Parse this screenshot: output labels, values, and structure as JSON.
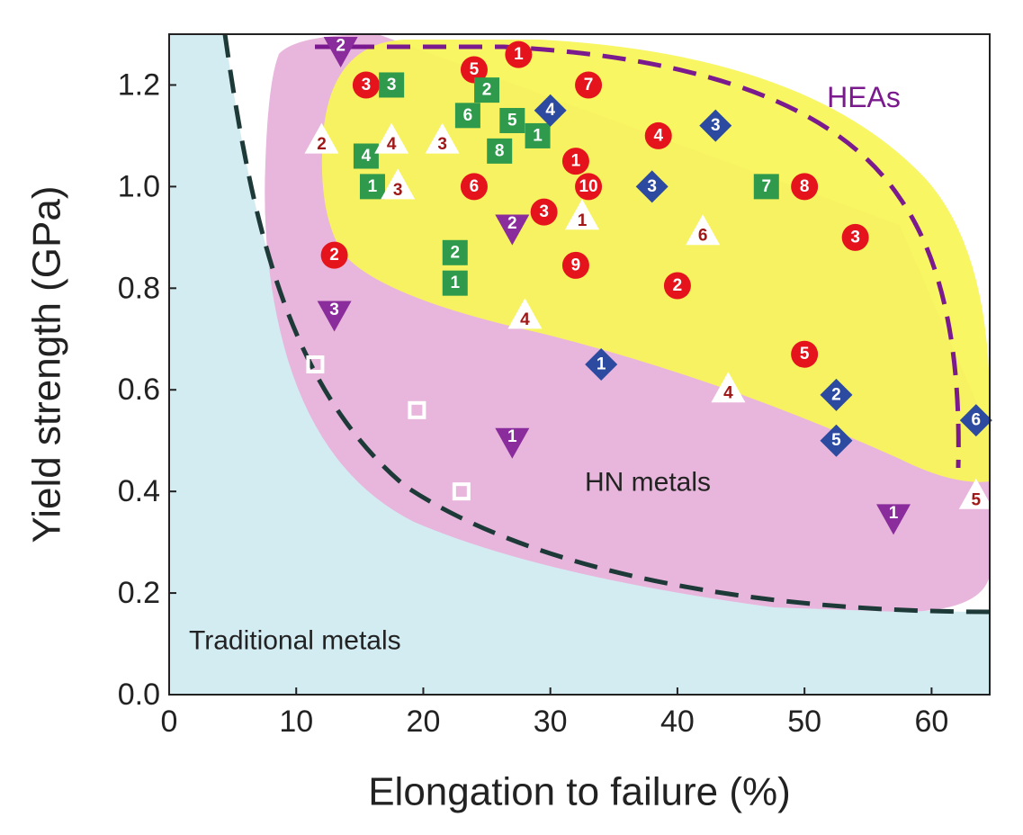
{
  "chart_data": {
    "type": "scatter",
    "x_label": "Elongation to failure (%)",
    "y_label": "Yield strength (GPa)",
    "xlim": [
      0,
      65
    ],
    "ylim": [
      0,
      1.3
    ],
    "xticks": [
      0,
      10,
      20,
      30,
      40,
      50,
      60
    ],
    "yticks": [
      {
        "value": 0,
        "label": "0.0"
      },
      0.2,
      0.4,
      0.6,
      0.8,
      {
        "value": 1,
        "label": "1.0"
      },
      1.2
    ],
    "annotations": [
      "HEAs",
      "HN metals",
      "Traditional metals"
    ],
    "series": [
      {
        "marker": "circle",
        "color": "#e5141c",
        "text_color": "#ffffff",
        "x": [
          27.5,
          24,
          33,
          15.5,
          38.5,
          32,
          33,
          24,
          50,
          29.5,
          54,
          13,
          32,
          40,
          50
        ],
        "values": [
          1.26,
          1.23,
          1.2,
          1.2,
          1.1,
          1.05,
          1.0,
          1.0,
          1.0,
          0.95,
          0.9,
          0.865,
          0.845,
          0.805,
          0.67
        ],
        "labels": [
          "1",
          "5",
          "7",
          "3",
          "4",
          "1",
          "10",
          "6",
          "8",
          "3",
          "3",
          "2",
          "9",
          "2",
          "5"
        ]
      },
      {
        "marker": "square",
        "color": "#2f9a4c",
        "text_color": "#ffffff",
        "x": [
          17.5,
          25,
          23.5,
          27,
          29,
          26,
          15.5,
          16,
          22.5,
          22.5,
          47
        ],
        "values": [
          1.2,
          1.19,
          1.14,
          1.13,
          1.1,
          1.07,
          1.06,
          1.0,
          0.87,
          0.81,
          1.0
        ],
        "labels": [
          "3",
          "2",
          "6",
          "5",
          "1",
          "8",
          "4",
          "1",
          "2",
          "1",
          "7"
        ]
      },
      {
        "marker": "diamond",
        "color": "#2b4aa0",
        "text_color": "#ffffff",
        "x": [
          30,
          43,
          38,
          34,
          52.5,
          52.5,
          63.5
        ],
        "values": [
          1.15,
          1.12,
          1.0,
          0.65,
          0.59,
          0.5,
          0.54
        ],
        "labels": [
          "4",
          "3",
          "3",
          "1",
          "2",
          "5",
          "6"
        ]
      },
      {
        "marker": "triangle-up",
        "color": "#ffffff",
        "text_color": "#a01818",
        "x": [
          12,
          17.5,
          21.5,
          18,
          32.5,
          42,
          28,
          44,
          63.5
        ],
        "values": [
          1.09,
          1.09,
          1.09,
          1.0,
          0.94,
          0.91,
          0.745,
          0.6,
          0.39
        ],
        "labels": [
          "2",
          "4",
          "3",
          "3",
          "1",
          "6",
          "4",
          "4",
          "5"
        ]
      },
      {
        "marker": "triangle-down",
        "color": "#8a2c9c",
        "text_color": "#ffffff",
        "x": [
          13.5,
          27,
          13,
          27,
          57
        ],
        "values": [
          1.27,
          0.92,
          0.75,
          0.5,
          0.35
        ],
        "labels": [
          "2",
          "2",
          "3",
          "1",
          "1"
        ]
      },
      {
        "marker": "open-square",
        "color": "#ffffff",
        "x": [
          11.5,
          19.5,
          23
        ],
        "values": [
          0.65,
          0.56,
          0.4
        ]
      }
    ]
  }
}
